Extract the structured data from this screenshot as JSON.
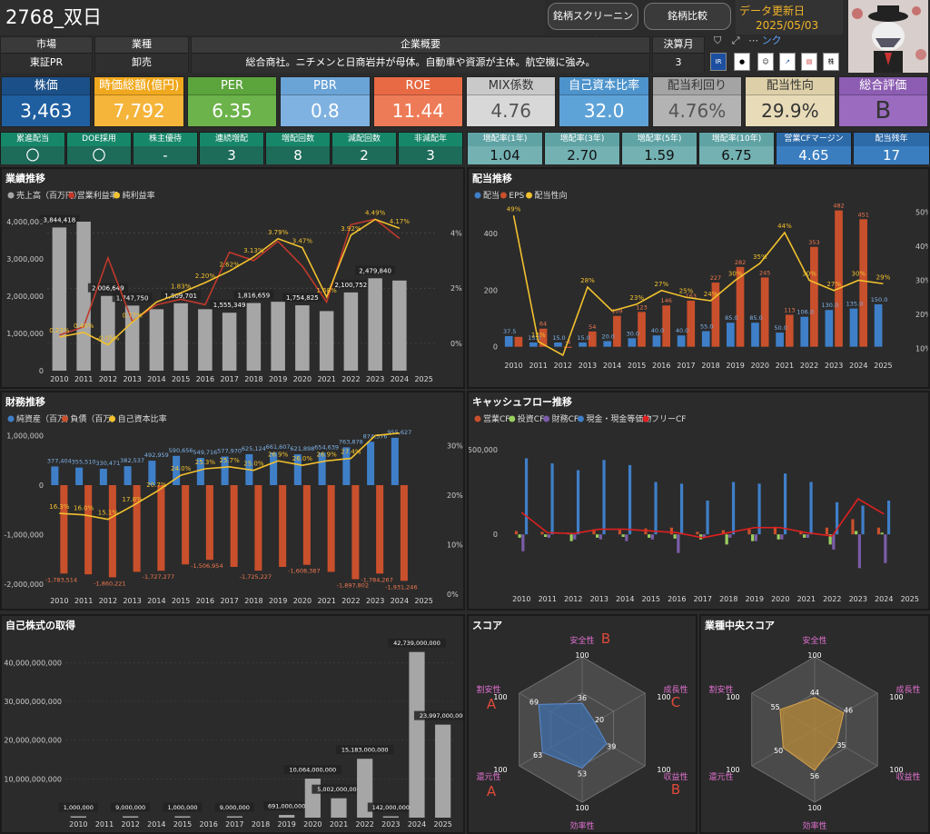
{
  "header": {
    "title": "2768_双日",
    "btn_screening": "銘柄スクリーニング",
    "btn_compare": "銘柄比較",
    "update_label": "データ更新日",
    "update_date": "2025/05/03"
  },
  "info": {
    "market_label": "市場",
    "market": "東証PR",
    "industry_label": "業種",
    "industry": "卸売",
    "overview_label": "企業概要",
    "overview": "総合商社。ニチメンと日商岩井が母体。自動車や資源が主体。航空機に強み。",
    "fiscal_label": "決算月",
    "fiscal": "3",
    "link_text": "ンク"
  },
  "metrics": [
    {
      "label": "株価",
      "value": "3,463",
      "bg": "#1f5fa0",
      "lbg": "#1b4f87"
    },
    {
      "label": "時価総額(億円)",
      "value": "7,792",
      "bg": "#f5b43a",
      "lbg": "#f0a81e"
    },
    {
      "label": "PER",
      "value": "6.35",
      "bg": "#6bb34a",
      "lbg": "#5ca43c"
    },
    {
      "label": "PBR",
      "value": "0.8",
      "bg": "#7fb2e0",
      "lbg": "#6aa3d6"
    },
    {
      "label": "ROE",
      "value": "11.44",
      "bg": "#ee7b57",
      "lbg": "#e86a44"
    },
    {
      "label": "MIX係数",
      "value": "4.76",
      "bg": "#d8d8d8",
      "lbg": "#c9c9c9"
    },
    {
      "label": "自己資本比率",
      "value": "32.0",
      "bg": "#5ea3d8",
      "lbg": "#4d93cc"
    },
    {
      "label": "配当利回り",
      "value": "4.76%",
      "bg": "#b3b3b3",
      "lbg": "#a4a4a4"
    },
    {
      "label": "配当性向",
      "value": "29.9%",
      "bg": "#e8dcb8",
      "lbg": "#ddd0a8"
    },
    {
      "label": "総合評価",
      "value": "B",
      "bg": "#9a6bbf",
      "lbg": "#8c5db2"
    }
  ],
  "stats": [
    {
      "label": "累進配当",
      "value": "〇"
    },
    {
      "label": "DOE採用",
      "value": "〇"
    },
    {
      "label": "株主優待",
      "value": "-"
    },
    {
      "label": "連続増配",
      "value": "3"
    },
    {
      "label": "増配回数",
      "value": "8"
    },
    {
      "label": "減配回数",
      "value": "2"
    },
    {
      "label": "非減配年",
      "value": "3"
    },
    {
      "label": "増配率(1年)",
      "value": "1.04"
    },
    {
      "label": "増配率(3年)",
      "value": "2.70"
    },
    {
      "label": "増配率(5年)",
      "value": "1.59"
    },
    {
      "label": "増配率(10年)",
      "value": "6.75"
    },
    {
      "label": "営業CFマージン",
      "value": "4.65"
    },
    {
      "label": "配当残年",
      "value": "17"
    }
  ],
  "panels": {
    "gyoseki": "業績推移",
    "haito": "配当推移",
    "zaimu": "財務推移",
    "cf": "キャッシュフロー推移",
    "jisha": "自己株式の取得",
    "score": "スコア",
    "industry_score": "業種中央スコア"
  },
  "colors": {
    "gray": "#a6a6a6",
    "red": "#c0392b",
    "orange": "#c9502c",
    "yellow": "#f2c12e",
    "blue": "#3f7fc8",
    "purple": "#7b5ca8",
    "green": "#9bcf5f"
  },
  "chart_data": [
    {
      "type": "bar",
      "name": "業績推移",
      "categories": [
        "2010",
        "2011",
        "2012",
        "2013",
        "2014",
        "2015",
        "2016",
        "2017",
        "2018",
        "2019",
        "2020",
        "2021",
        "2022",
        "2023",
        "2024",
        "2025"
      ],
      "series": [
        {
          "name": "売上高（百万円）",
          "values": [
            3844418,
            4000000,
            2006649,
            1747750,
            1650000,
            1809701,
            1650000,
            1555349,
            1816659,
            1850000,
            1754825,
            1600000,
            2100752,
            2479840,
            2420000,
            null
          ]
        },
        {
          "name": "営業利益率",
          "values": [
            0.3,
            0.6,
            3.1,
            0.8,
            1.4,
            1.6,
            1.4,
            3.3,
            3.0,
            3.7,
            2.8,
            1.5,
            4.3,
            4.5,
            3.8,
            null
          ]
        },
        {
          "name": "純利益率",
          "values": [
            0.23,
            0.4,
            -0.05,
            0.77,
            1.5,
            1.83,
            2.2,
            2.62,
            3.13,
            3.79,
            3.47,
            1.68,
            3.92,
            4.49,
            4.17,
            null
          ]
        }
      ],
      "bar_labels": [
        "3,844,418",
        "",
        "2,006,649",
        "1,747,750",
        "",
        "1,809,701",
        "",
        "1,555,349",
        "1,816,659",
        "",
        "1,754,825",
        "",
        "2,100,752",
        "2,479,840",
        "",
        ""
      ],
      "line_labels": [
        "0.23%",
        "0.40%",
        "-0.05%",
        "0.77%",
        "",
        "1.83%",
        "2.20%",
        "2.62%",
        "3.13%",
        "3.79%",
        "3.47%",
        "1.68%",
        "3.92%",
        "4.49%",
        "4.17%",
        ""
      ],
      "yticks": [
        "4,000,000",
        "3,000,000",
        "2,000,000",
        "1,000,000",
        "0"
      ],
      "y2ticks": [
        "4%",
        "2%",
        "0%"
      ],
      "ylim": [
        0,
        4000000
      ],
      "y2lim": [
        -0.5,
        5
      ]
    },
    {
      "type": "bar",
      "name": "配当推移",
      "categories": [
        "2010",
        "2011",
        "2012",
        "2013",
        "2014",
        "2015",
        "2016",
        "2017",
        "2018",
        "2019",
        "2020",
        "2021",
        "2022",
        "2023",
        "2024",
        "2025"
      ],
      "series": [
        {
          "name": "配当",
          "values": [
            37.5,
            15.0,
            15.0,
            15.0,
            20.0,
            30.0,
            40.0,
            40.0,
            55.0,
            85.0,
            85.0,
            50.0,
            106.0,
            130.0,
            135.0,
            150.0
          ]
        },
        {
          "name": "EPS",
          "values": [
            35,
            64,
            -4,
            54,
            109,
            123,
            146,
            163,
            227,
            282,
            245,
            113,
            353,
            482,
            451,
            null
          ]
        },
        {
          "name": "配当性向",
          "values": [
            49,
            12,
            8,
            28,
            21,
            23,
            27,
            25,
            24,
            30,
            35,
            44,
            30,
            27,
            30,
            29
          ]
        }
      ],
      "div_labels": [
        "37.5",
        "15.0",
        "15.0",
        "15.0",
        "20.0",
        "30.0",
        "40.0",
        "40.0",
        "55.0",
        "85.0",
        "85.0",
        "50.0",
        "106.0",
        "130.0",
        "135.0",
        "150.0"
      ],
      "eps_labels": [
        "",
        "64",
        "-4",
        "54",
        "109",
        "123",
        "146",
        "163",
        "227",
        "282",
        "245",
        "113",
        "353",
        "482",
        "451",
        ""
      ],
      "ratio_labels": [
        "49%",
        "12%",
        "",
        "28%",
        "",
        "23%",
        "27%",
        "25%",
        "24%",
        "30%",
        "35%",
        "44%",
        "30%",
        "27%",
        "30%",
        "29%"
      ],
      "yticks": [
        "400",
        "200",
        "0"
      ],
      "y2ticks": [
        "50%",
        "40%",
        "30%",
        "20%",
        "10%"
      ],
      "ylim": [
        -30,
        500
      ],
      "y2lim": [
        8,
        52
      ]
    },
    {
      "type": "bar",
      "name": "財務推移",
      "categories": [
        "2010",
        "2011",
        "2012",
        "2013",
        "2014",
        "2015",
        "2016",
        "2017",
        "2018",
        "2019",
        "2020",
        "2021",
        "2022",
        "2023",
        "2024",
        "2025"
      ],
      "series": [
        {
          "name": "純資産（百万）",
          "values": [
            377404,
            355510,
            330471,
            382537,
            492959,
            590656,
            549716,
            577970,
            625124,
            661607,
            621898,
            654639,
            763878,
            874576,
            955627,
            null
          ]
        },
        {
          "name": "負債（百万）",
          "values": [
            -1783514,
            -1800000,
            -1860221,
            -1750000,
            -1727277,
            -1600000,
            -1506954,
            -1650000,
            -1725227,
            -1650000,
            -1608387,
            -1750000,
            -1897802,
            -1784267,
            -1931246,
            null
          ]
        },
        {
          "name": "自己資本比率",
          "values": [
            16.3,
            16.0,
            15.1,
            17.8,
            20.7,
            24.0,
            25.3,
            25.7,
            25.0,
            26.9,
            26.0,
            26.9,
            27.4,
            32.0,
            32.5,
            null
          ]
        }
      ],
      "asset_labels": [
        "377,404",
        "355,510",
        "330,471",
        "382,537",
        "492,959",
        "590,656",
        "549,716",
        "577,970",
        "625,124",
        "661,607",
        "621,898",
        "654,639",
        "763,878",
        "874,576",
        "955,627",
        ""
      ],
      "debt_labels": [
        "-1,783,514",
        "",
        "-1,860,221",
        "",
        "-1,727,277",
        "",
        "-1,506,954",
        "",
        "-1,725,227",
        "",
        "-1,608,387",
        "",
        "-1,897,802",
        "-1,784,267",
        "-1,931,246",
        ""
      ],
      "ratio_labels": [
        "16.3%",
        "16.0%",
        "15.1%",
        "17.8%",
        "20.7%",
        "24.0%",
        "25.3%",
        "25.7%",
        "25.0%",
        "26.9%",
        "26.0%",
        "26.9%",
        "27.4%",
        "",
        "",
        ""
      ],
      "yticks": [
        "1,000,000",
        "0",
        "-1,000,000",
        "-2,000,000"
      ],
      "y2ticks": [
        "30%",
        "20%",
        "10%",
        "0%"
      ],
      "ylim": [
        -2200000,
        1100000
      ],
      "y2lim": [
        0,
        33
      ]
    },
    {
      "type": "bar",
      "name": "キャッシュフロー推移",
      "categories": [
        "2010",
        "2011",
        "2012",
        "2013",
        "2014",
        "2015",
        "2016",
        "2017",
        "2018",
        "2019",
        "2020",
        "2021",
        "2022",
        "2023",
        "2024",
        "2025"
      ],
      "series": [
        {
          "name": "営業CF",
          "values": [
            20000,
            15000,
            10000,
            30000,
            25000,
            35000,
            40000,
            15000,
            25000,
            30000,
            45000,
            20000,
            40000,
            90000,
            40000,
            null
          ]
        },
        {
          "name": "投資CF",
          "values": [
            -20000,
            -15000,
            -40000,
            -20000,
            -15000,
            -20000,
            -25000,
            -30000,
            -60000,
            -40000,
            -30000,
            -20000,
            -60000,
            20000,
            10000,
            null
          ]
        },
        {
          "name": "財務CF",
          "values": [
            -100000,
            -20000,
            -30000,
            -30000,
            -40000,
            -30000,
            -110000,
            -15000,
            -20000,
            -40000,
            -30000,
            -20000,
            -90000,
            -200000,
            -170000,
            null
          ]
        },
        {
          "name": "現金・現金等価物",
          "values": [
            450000,
            420000,
            380000,
            440000,
            410000,
            310000,
            300000,
            200000,
            310000,
            300000,
            360000,
            310000,
            190000,
            170000,
            200000,
            null
          ]
        },
        {
          "name": "フリーCF",
          "values": [
            130000,
            10000,
            5000,
            30000,
            30000,
            20000,
            10000,
            -20000,
            10000,
            40000,
            40000,
            10000,
            -10000,
            210000,
            120000,
            null
          ]
        }
      ],
      "yticks": [
        "500,000",
        "0"
      ],
      "ylim": [
        -300000,
        560000
      ]
    },
    {
      "type": "bar",
      "name": "自己株式の取得",
      "categories": [
        "2010",
        "2011",
        "2012",
        "2014",
        "2015",
        "2016",
        "2017",
        "2018",
        "2019",
        "2020",
        "2021",
        "2022",
        "2023",
        "2024",
        "2025"
      ],
      "values": [
        1000000,
        0,
        9000000,
        0,
        1000000,
        0,
        9000000,
        0,
        691000000,
        10064000000,
        5002000000,
        15183000000,
        142000000,
        42739000000,
        23997000000
      ],
      "value_labels": [
        "1,000,000",
        "",
        "9,000,000",
        "",
        "1,000,000",
        "",
        "9,000,000",
        "",
        "691,000,000",
        "10,064,000,000",
        "5,002,000,000",
        "15,183,000,000",
        "142,000,000",
        "42,739,000,000",
        "23,997,000,000"
      ],
      "yticks": [
        "40,000,000,000",
        "30,000,000,000",
        "20,000,000,000",
        "10,000,000,000"
      ],
      "ylim": [
        0,
        45000000000
      ]
    },
    {
      "type": "radar",
      "name": "スコア",
      "axes": [
        "安全性",
        "成長性",
        "収益性",
        "効率性",
        "還元性",
        "割安性"
      ],
      "values": [
        36,
        20,
        39,
        53,
        63,
        69
      ],
      "grades": [
        "B",
        "C",
        "B",
        "",
        "A",
        "A"
      ],
      "max": 100
    },
    {
      "type": "radar",
      "name": "業種中央スコア",
      "axes": [
        "安全性",
        "成長性",
        "収益性",
        "効率性",
        "還元性",
        "割安性"
      ],
      "values": [
        44,
        46,
        35,
        56,
        50,
        55
      ],
      "max": 100
    }
  ]
}
